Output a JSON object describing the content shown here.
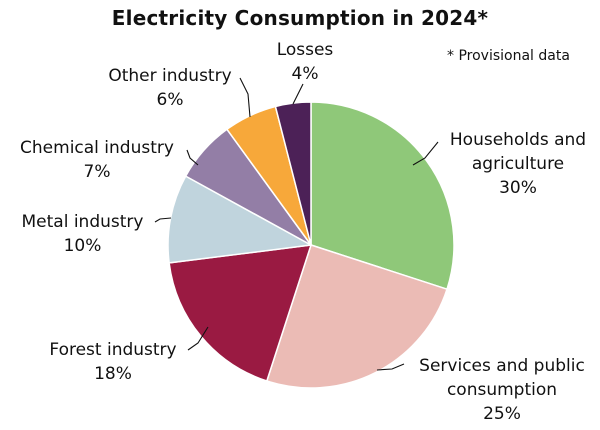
{
  "chart_data": {
    "type": "pie",
    "title": "Electricity Consumption in 2024*",
    "note": "* Provisional data",
    "start_angle_deg": 0,
    "direction": "clockwise",
    "slices": [
      {
        "name": "Households and agriculture",
        "label": "Households and\nagriculture",
        "value": 30,
        "value_label": "30%",
        "color": "#8fc879"
      },
      {
        "name": "Services and public consumption",
        "label": "Services and public\nconsumption",
        "value": 25,
        "value_label": "25%",
        "color": "#ebbbb5"
      },
      {
        "name": "Forest industry",
        "label": "Forest industry",
        "value": 18,
        "value_label": "18%",
        "color": "#9a1a42"
      },
      {
        "name": "Metal industry",
        "label": "Metal industry",
        "value": 10,
        "value_label": "10%",
        "color": "#c0d4dd"
      },
      {
        "name": "Chemical industry",
        "label": "Chemical industry",
        "value": 7,
        "value_label": "7%",
        "color": "#937ea6"
      },
      {
        "name": "Other industry",
        "label": "Other industry",
        "value": 6,
        "value_label": "6%",
        "color": "#f7a83a"
      },
      {
        "name": "Losses",
        "label": "Losses",
        "value": 4,
        "value_label": "4%",
        "color": "#4c2157"
      }
    ]
  }
}
